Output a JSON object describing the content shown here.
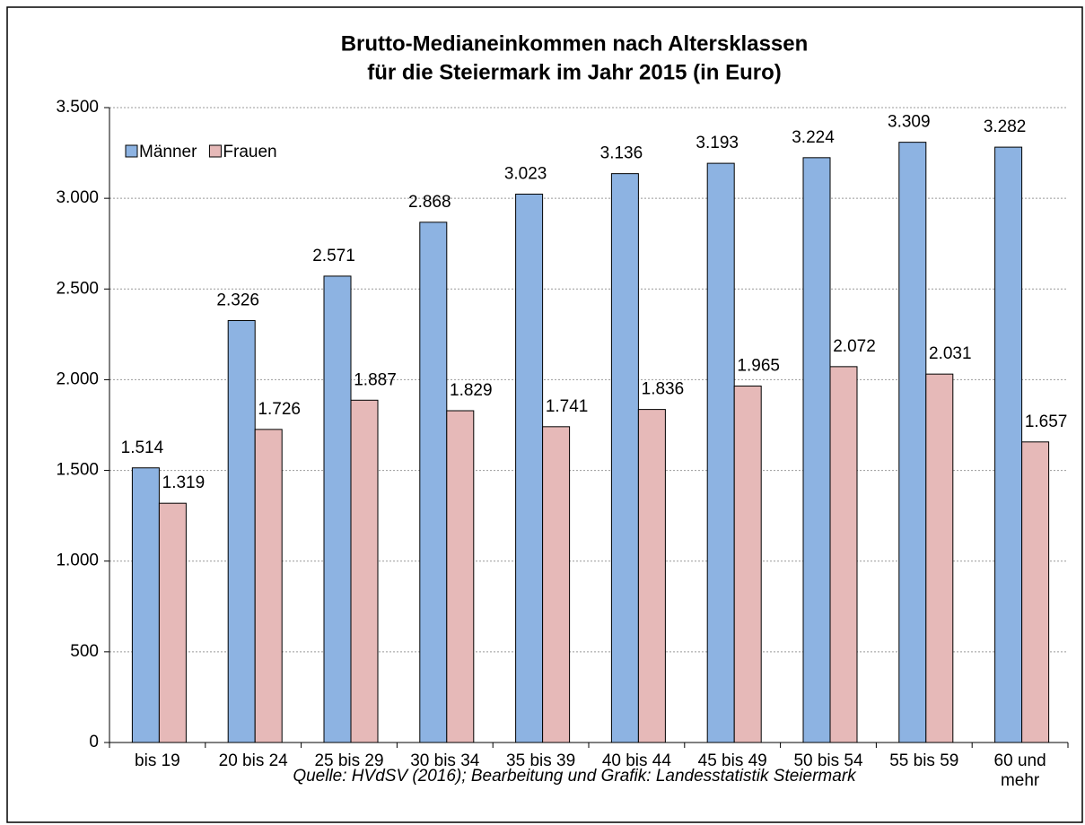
{
  "chart_data": {
    "type": "bar",
    "title": [
      "Brutto-Medianeinkommen nach Altersklassen",
      "für die Steiermark im Jahr 2015 (in Euro)"
    ],
    "categories": [
      "bis 19",
      "20 bis 24",
      "25 bis 29",
      "30 bis 34",
      "35 bis 39",
      "40 bis 44",
      "45 bis 49",
      "50 bis 54",
      "55 bis 59",
      "60 und mehr"
    ],
    "series": [
      {
        "name": "Männer",
        "color": "#8db3e2",
        "values": [
          1514,
          2326,
          2571,
          2868,
          3023,
          3136,
          3193,
          3224,
          3309,
          3282
        ],
        "value_labels": [
          "1.514",
          "2.326",
          "2.571",
          "2.868",
          "3.023",
          "3.136",
          "3.193",
          "3.224",
          "3.309",
          "3.282"
        ]
      },
      {
        "name": "Frauen",
        "color": "#e6b9b8",
        "values": [
          1319,
          1726,
          1887,
          1829,
          1741,
          1836,
          1965,
          2072,
          2031,
          1657
        ],
        "value_labels": [
          "1.319",
          "1.726",
          "1.887",
          "1.829",
          "1.741",
          "1.836",
          "1.965",
          "2.072",
          "2.031",
          "1.657"
        ]
      }
    ],
    "ylim": [
      0,
      3500
    ],
    "yticks": [
      0,
      500,
      {
        "value": 1000,
        "label": "1.000"
      },
      {
        "value": 1500,
        "label": "1.500"
      },
      {
        "value": 2000,
        "label": "2.000"
      },
      {
        "value": 2500,
        "label": "2.500"
      },
      {
        "value": 3000,
        "label": "3.000"
      },
      {
        "value": 3500,
        "label": "3.500"
      }
    ],
    "grid": true,
    "legend": "upper-left",
    "source": "Quelle: HVdSV (2016); Bearbeitung und Grafik: Landesstatistik Steiermark"
  }
}
